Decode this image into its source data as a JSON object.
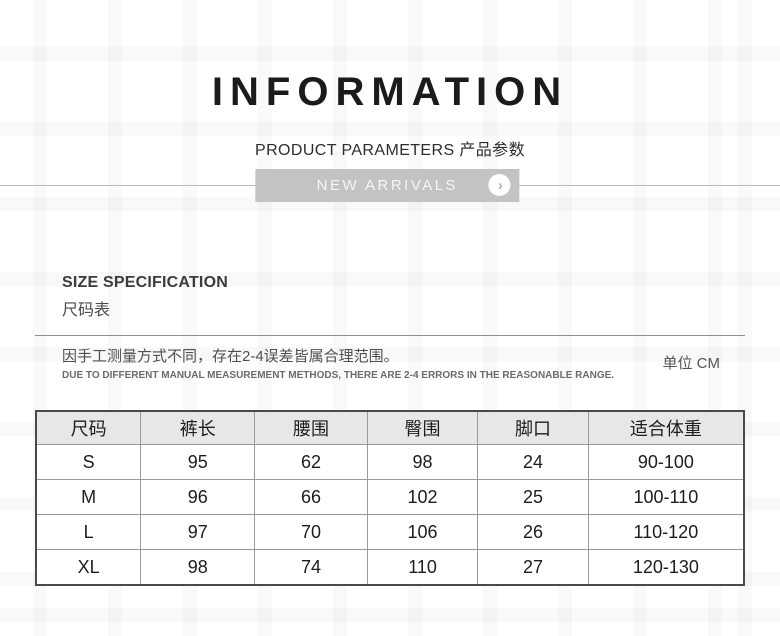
{
  "header": {
    "title": "INFORMATION",
    "subtitle": "PRODUCT PARAMETERS 产品参数"
  },
  "banner": {
    "label": "NEW ARRIVALS",
    "arrow_glyph": "›"
  },
  "section": {
    "heading_en": "SIZE SPECIFICATION",
    "heading_cn": "尺码表",
    "note_cn": "因手工测量方式不同，存在2-4误差皆属合理范围。",
    "note_en": "DUE TO DIFFERENT MANUAL MEASUREMENT METHODS, THERE ARE 2-4 ERRORS IN THE REASONABLE RANGE.",
    "unit_label": "单位 CM"
  },
  "size_table": {
    "columns": [
      "尺码",
      "裤长",
      "腰围",
      "臀围",
      "脚口",
      "适合体重"
    ],
    "rows": [
      [
        "S",
        "95",
        "62",
        "98",
        "24",
        "90-100"
      ],
      [
        "M",
        "96",
        "66",
        "102",
        "25",
        "100-110"
      ],
      [
        "L",
        "97",
        "70",
        "106",
        "26",
        "110-120"
      ],
      [
        "XL",
        "98",
        "74",
        "110",
        "27",
        "120-130"
      ]
    ]
  },
  "colors": {
    "banner_bg": "#c3c3c3",
    "banner_text": "#f5f5f5",
    "table_header_bg": "#e7e7e7",
    "table_border_outer": "#4a4a4a",
    "table_border_inner": "#999999",
    "title_text": "#1b1b1b"
  }
}
